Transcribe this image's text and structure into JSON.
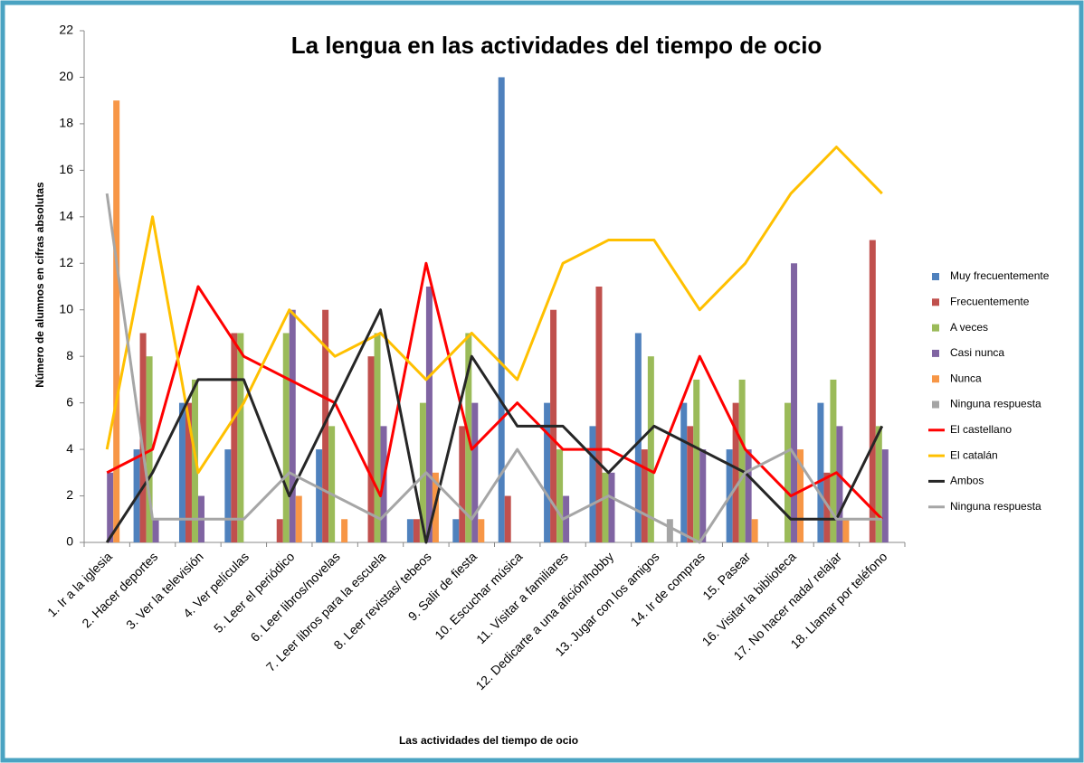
{
  "chart_data": {
    "type": "bar",
    "title": "La lengua en las actividades del tiempo de ocio",
    "x_label": "Las actividades del tiempo de ocio",
    "y_label": "Número de alumnos en cifras absolutas",
    "categories": [
      "1. Ir a la iglesia",
      "2. Hacer deportes",
      "3. Ver la televisión",
      "4. Ver películas",
      "5. Leer el periódico",
      "6. Leer libros/novelas",
      "7. Leer libros para la escuela",
      "8. Leer revistas/ tebeos",
      "9. Salir de fiesta",
      "10. Escuchar música",
      "11. Visitar a familiares",
      "12. Dedicarte a una afición/hobby",
      "13. Jugar con los amigos",
      "14. Ir de compras",
      "15. Pasear",
      "16. Visitar la biblioteca",
      "17. No hacer nada/ relajar",
      "18. Llamar por teléfono"
    ],
    "ylim": [
      0,
      22
    ],
    "yticks": [
      0,
      2,
      4,
      6,
      8,
      10,
      12,
      14,
      16,
      18,
      20,
      22
    ],
    "series": [
      {
        "name": "Muy frecuentemente",
        "type": "bar",
        "color": "#4f81bd",
        "values": [
          0,
          4,
          6,
          4,
          0,
          4,
          0,
          1,
          1,
          20,
          6,
          5,
          9,
          6,
          4,
          0,
          6,
          0
        ]
      },
      {
        "name": "Frecuentemente",
        "type": "bar",
        "color": "#c0504d",
        "values": [
          0,
          9,
          6,
          9,
          1,
          10,
          8,
          1,
          5,
          2,
          10,
          11,
          4,
          5,
          6,
          0,
          3,
          13
        ]
      },
      {
        "name": "A veces",
        "type": "bar",
        "color": "#9bbb59",
        "values": [
          0,
          8,
          7,
          9,
          9,
          5,
          9,
          6,
          9,
          0,
          4,
          3,
          8,
          7,
          7,
          6,
          7,
          5
        ]
      },
      {
        "name": "Casi nunca",
        "type": "bar",
        "color": "#8064a2",
        "values": [
          3,
          1,
          2,
          0,
          10,
          0,
          5,
          11,
          6,
          0,
          2,
          3,
          0,
          4,
          4,
          12,
          5,
          4
        ]
      },
      {
        "name": "Nunca",
        "type": "bar",
        "color": "#f79646",
        "values": [
          19,
          0,
          0,
          0,
          2,
          1,
          0,
          3,
          1,
          0,
          0,
          0,
          0,
          0,
          1,
          4,
          1,
          0
        ]
      },
      {
        "name": "Ninguna respuesta",
        "type": "bar",
        "color": "#a5a5a5",
        "values": [
          0,
          0,
          0,
          0,
          0,
          0,
          0,
          0,
          0,
          0,
          0,
          0,
          1,
          0,
          0,
          0,
          0,
          0
        ]
      },
      {
        "name": "El castellano",
        "type": "line",
        "color": "#ff0000",
        "values": [
          3,
          4,
          11,
          8,
          7,
          6,
          2,
          12,
          4,
          6,
          4,
          4,
          3,
          8,
          4,
          2,
          3,
          1
        ]
      },
      {
        "name": "El catalán",
        "type": "line",
        "color": "#ffc000",
        "values": [
          4,
          14,
          3,
          6,
          10,
          8,
          9,
          7,
          9,
          7,
          12,
          13,
          13,
          10,
          12,
          15,
          17,
          15
        ]
      },
      {
        "name": "Ambos",
        "type": "line",
        "color": "#262626",
        "values": [
          0,
          3,
          7,
          7,
          2,
          6,
          10,
          0,
          8,
          5,
          5,
          3,
          5,
          4,
          3,
          1,
          1,
          5
        ]
      },
      {
        "name": "Ninguna respuesta",
        "type": "line",
        "color": "#a6a6a6",
        "values": [
          15,
          1,
          1,
          1,
          3,
          2,
          1,
          3,
          1,
          4,
          1,
          2,
          1,
          0,
          3,
          4,
          1,
          1
        ]
      }
    ]
  }
}
